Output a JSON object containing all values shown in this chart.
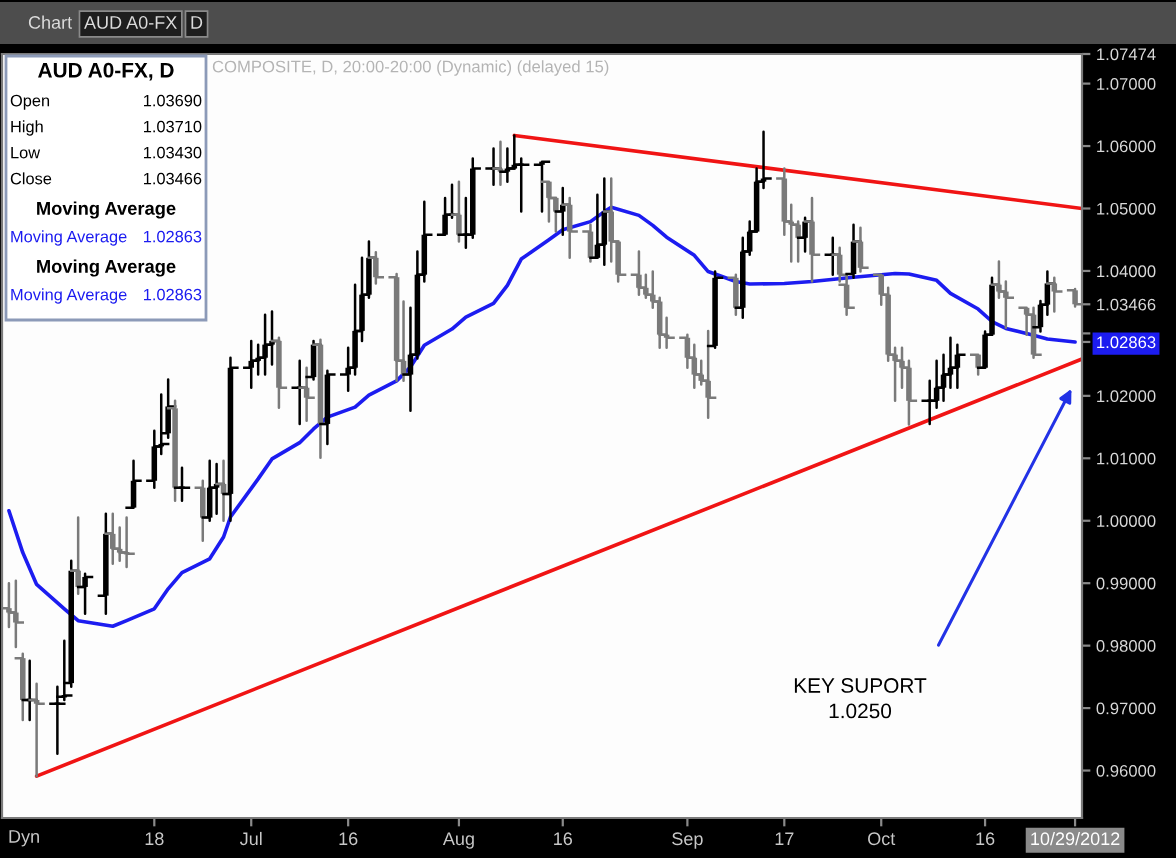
{
  "chart_data": {
    "type": "candlestick",
    "title": "AUD A0-FX, D",
    "subtitle": "COMPOSITE, D, 20:00-20:00 (Dynamic) (delayed 15)",
    "x": [
      "2012-05-28",
      "2012-05-29",
      "2012-05-30",
      "2012-05-31",
      "2012-06-01",
      "2012-06-04",
      "2012-06-05",
      "2012-06-06",
      "2012-06-07",
      "2012-06-08",
      "2012-06-11",
      "2012-06-12",
      "2012-06-13",
      "2012-06-14",
      "2012-06-15",
      "2012-06-18",
      "2012-06-19",
      "2012-06-20",
      "2012-06-21",
      "2012-06-22",
      "2012-06-25",
      "2012-06-26",
      "2012-06-27",
      "2012-06-28",
      "2012-06-29",
      "2012-07-02",
      "2012-07-03",
      "2012-07-04",
      "2012-07-05",
      "2012-07-06",
      "2012-07-09",
      "2012-07-10",
      "2012-07-11",
      "2012-07-12",
      "2012-07-13",
      "2012-07-16",
      "2012-07-17",
      "2012-07-18",
      "2012-07-19",
      "2012-07-20",
      "2012-07-23",
      "2012-07-24",
      "2012-07-25",
      "2012-07-26",
      "2012-07-27",
      "2012-07-30",
      "2012-07-31",
      "2012-08-01",
      "2012-08-02",
      "2012-08-03",
      "2012-08-06",
      "2012-08-07",
      "2012-08-08",
      "2012-08-09",
      "2012-08-10",
      "2012-08-13",
      "2012-08-14",
      "2012-08-15",
      "2012-08-16",
      "2012-08-17",
      "2012-08-20",
      "2012-08-21",
      "2012-08-22",
      "2012-08-23",
      "2012-08-24",
      "2012-08-27",
      "2012-08-28",
      "2012-08-29",
      "2012-08-30",
      "2012-08-31",
      "2012-09-03",
      "2012-09-04",
      "2012-09-05",
      "2012-09-06",
      "2012-09-07",
      "2012-09-10",
      "2012-09-11",
      "2012-09-12",
      "2012-09-13",
      "2012-09-14",
      "2012-09-17",
      "2012-09-18",
      "2012-09-19",
      "2012-09-20",
      "2012-09-21",
      "2012-09-24",
      "2012-09-25",
      "2012-09-26",
      "2012-09-27",
      "2012-09-28",
      "2012-10-01",
      "2012-10-02",
      "2012-10-03",
      "2012-10-04",
      "2012-10-05",
      "2012-10-08",
      "2012-10-09",
      "2012-10-10",
      "2012-10-11",
      "2012-10-12",
      "2012-10-15",
      "2012-10-16",
      "2012-10-17",
      "2012-10-18",
      "2012-10-19",
      "2012-10-22",
      "2012-10-23",
      "2012-10-24",
      "2012-10-25",
      "2012-10-26",
      "2012-10-29"
    ],
    "ohlc": [
      [
        0.986,
        0.99,
        0.983,
        0.9853
      ],
      [
        0.9853,
        0.9904,
        0.9798,
        0.9837
      ],
      [
        0.978,
        0.9787,
        0.9681,
        0.9713
      ],
      [
        0.9713,
        0.9776,
        0.9681,
        0.9713
      ],
      [
        0.9713,
        0.9739,
        0.9591,
        0.9707
      ],
      [
        0.9707,
        0.9734,
        0.9627,
        0.9707
      ],
      [
        0.9718,
        0.9808,
        0.9713,
        0.972
      ],
      [
        0.974,
        0.9936,
        0.9734,
        0.992
      ],
      [
        0.992,
        1.0005,
        0.9883,
        0.9894
      ],
      [
        0.9894,
        0.9915,
        0.9851,
        0.991
      ],
      [
        0.988,
        1.0011,
        0.9851,
        0.9979
      ],
      [
        0.9979,
        1.0011,
        0.9931,
        0.9955
      ],
      [
        0.9955,
        0.9989,
        0.9936,
        0.9949
      ],
      [
        0.9949,
        1.0005,
        0.9926,
        0.9947
      ],
      [
        1.0021,
        1.0096,
        1.0021,
        1.0064
      ],
      [
        1.0064,
        1.0144,
        1.0053,
        1.0119
      ],
      [
        1.0119,
        1.0202,
        1.0107,
        1.0123
      ],
      [
        1.014,
        1.0226,
        1.0133,
        1.0183
      ],
      [
        1.018,
        1.0192,
        1.0032,
        1.0053
      ],
      [
        1.0053,
        1.0085,
        1.0032,
        1.0053
      ],
      [
        1.0053,
        1.0064,
        0.9968,
        1.0005
      ],
      [
        1.0005,
        1.0096,
        1.0,
        1.0053
      ],
      [
        1.0053,
        1.0091,
        1.0011,
        1.0059
      ],
      [
        1.0059,
        1.0096,
        1.0,
        1.0043
      ],
      [
        1.0043,
        1.0261,
        1.0,
        1.0245
      ],
      [
        1.0245,
        1.0288,
        1.0213,
        1.0256
      ],
      [
        1.0256,
        1.0282,
        1.0234,
        1.0261
      ],
      [
        1.0261,
        1.033,
        1.0234,
        1.0282
      ],
      [
        1.0282,
        1.0335,
        1.025,
        1.0288
      ],
      [
        1.0288,
        1.0293,
        1.0181,
        1.0213
      ],
      [
        1.0213,
        1.0256,
        1.0155,
        1.0213
      ],
      [
        1.0213,
        1.0245,
        1.016,
        1.0197
      ],
      [
        1.023,
        1.0288,
        1.0226,
        1.0282
      ],
      [
        1.0282,
        1.029,
        1.0101,
        1.0155
      ],
      [
        1.0155,
        1.024,
        1.0123,
        1.0234
      ],
      [
        1.0234,
        1.0277,
        1.0208,
        1.0245
      ],
      [
        1.0245,
        1.0378,
        1.0234,
        1.0304
      ],
      [
        1.0304,
        1.0421,
        1.0288,
        1.0362
      ],
      [
        1.0362,
        1.0447,
        1.0357,
        1.0421
      ],
      [
        1.0421,
        1.043,
        1.038,
        1.039
      ],
      [
        1.039,
        1.0395,
        1.0224,
        1.0256
      ],
      [
        1.0256,
        1.0351,
        1.0224,
        1.0234
      ],
      [
        1.0234,
        1.0341,
        1.0176,
        1.0266
      ],
      [
        1.0266,
        1.0431,
        1.026,
        1.0394
      ],
      [
        1.0394,
        1.0511,
        1.0383,
        1.0458
      ],
      [
        1.0458,
        1.0517,
        1.0458,
        1.049
      ],
      [
        1.049,
        1.0538,
        1.0485,
        1.049
      ],
      [
        1.049,
        1.0543,
        1.0447,
        1.0458
      ],
      [
        1.0458,
        1.0517,
        1.0437,
        1.0458
      ],
      [
        1.0458,
        1.058,
        1.0453,
        1.0564
      ],
      [
        1.0564,
        1.0596,
        1.0538,
        1.0564
      ],
      [
        1.0564,
        1.0607,
        1.0538,
        1.0559
      ],
      [
        1.0559,
        1.0596,
        1.0543,
        1.0564
      ],
      [
        1.0564,
        1.0617,
        1.0564,
        1.057
      ],
      [
        1.057,
        1.058,
        1.0495,
        1.057
      ],
      [
        1.057,
        1.0575,
        1.0495,
        1.0575
      ],
      [
        1.0543,
        1.0543,
        1.0479,
        1.0517
      ],
      [
        1.0517,
        1.0517,
        1.0463,
        1.0495
      ],
      [
        1.0495,
        1.0533,
        1.0458,
        1.0506
      ],
      [
        1.0506,
        1.0517,
        1.0421,
        1.0463
      ],
      [
        1.0463,
        1.0474,
        1.0415,
        1.0421
      ],
      [
        1.0421,
        1.0522,
        1.0421,
        1.0442
      ],
      [
        1.0442,
        1.0548,
        1.041,
        1.0495
      ],
      [
        1.0495,
        1.0548,
        1.0415,
        1.0447
      ],
      [
        1.0447,
        1.0447,
        1.0383,
        1.0394
      ],
      [
        1.0394,
        1.0431,
        1.0362,
        1.0373
      ],
      [
        1.0373,
        1.0394,
        1.0357,
        1.0362
      ],
      [
        1.0362,
        1.0399,
        1.0341,
        1.0351
      ],
      [
        1.0351,
        1.0357,
        1.0277,
        1.0298
      ],
      [
        1.0298,
        1.0325,
        1.0277,
        1.0293
      ],
      [
        1.0293,
        1.0298,
        1.0245,
        1.0261
      ],
      [
        1.0261,
        1.0282,
        1.0213,
        1.0234
      ],
      [
        1.0234,
        1.0256,
        1.0218,
        1.0224
      ],
      [
        1.0224,
        1.0304,
        1.0165,
        1.0197
      ],
      [
        1.028,
        1.0399,
        1.0277,
        1.0389
      ],
      [
        1.0389,
        1.0394,
        1.033,
        1.0341
      ],
      [
        1.0341,
        1.0453,
        1.0325,
        1.0431
      ],
      [
        1.0431,
        1.0479,
        1.0426,
        1.0463
      ],
      [
        1.0463,
        1.0564,
        1.0463,
        1.0543
      ],
      [
        1.0543,
        1.0623,
        1.0533,
        1.0548
      ],
      [
        1.0548,
        1.0564,
        1.0458,
        1.0479
      ],
      [
        1.0479,
        1.0506,
        1.0415,
        1.0474
      ],
      [
        1.0474,
        1.0479,
        1.0415,
        1.0453
      ],
      [
        1.0453,
        1.0485,
        1.0431,
        1.0479
      ],
      [
        1.0479,
        1.0517,
        1.0383,
        1.0426
      ],
      [
        1.0426,
        1.0453,
        1.0394,
        1.0426
      ],
      [
        1.0426,
        1.0437,
        1.0383,
        1.0394
      ],
      [
        1.0378,
        1.0394,
        1.033,
        1.0341
      ],
      [
        1.0395,
        1.0474,
        1.0389,
        1.0447
      ],
      [
        1.0447,
        1.0469,
        1.0399,
        1.0405
      ],
      [
        1.0394,
        1.0394,
        1.0346,
        1.0362
      ],
      [
        1.0362,
        1.0373,
        1.0256,
        1.0266
      ],
      [
        1.0266,
        1.0277,
        1.0192,
        1.0256
      ],
      [
        1.0256,
        1.0277,
        1.0213,
        1.0245
      ],
      [
        1.0245,
        1.0256,
        1.0154,
        1.0192
      ],
      [
        1.0192,
        1.0224,
        1.0155,
        1.0192
      ],
      [
        1.0192,
        1.0256,
        1.0181,
        1.0213
      ],
      [
        1.0213,
        1.0266,
        1.0192,
        1.0234
      ],
      [
        1.0234,
        1.0293,
        1.0213,
        1.0245
      ],
      [
        1.0245,
        1.0282,
        1.0213,
        1.0266
      ],
      [
        1.0266,
        1.0266,
        1.0234,
        1.0245
      ],
      [
        1.0245,
        1.0303,
        1.0245,
        1.0298
      ],
      [
        1.0298,
        1.0389,
        1.0298,
        1.0378
      ],
      [
        1.0378,
        1.0415,
        1.0357,
        1.0367
      ],
      [
        1.0367,
        1.0383,
        1.0309,
        1.0357
      ],
      [
        1.0341,
        1.0341,
        1.0298,
        1.033
      ],
      [
        1.033,
        1.0341,
        1.0261,
        1.0266
      ],
      [
        1.031,
        1.0352,
        1.0303,
        1.0346
      ],
      [
        1.0346,
        1.0399,
        1.033,
        1.038
      ],
      [
        1.038,
        1.0389,
        1.0335,
        1.0367
      ],
      [
        1.0369,
        1.0371,
        1.0343,
        1.03466
      ]
    ],
    "colors": [
      "#7a7a7a",
      "#7a7a7a",
      "#7a7a7a",
      "#000000",
      "#7a7a7a",
      "#000000",
      "#000000",
      "#000000",
      "#7a7a7a",
      "#000000",
      "#000000",
      "#7a7a7a",
      "#7a7a7a",
      "#7a7a7a",
      "#000000",
      "#000000",
      "#000000",
      "#000000",
      "#7a7a7a",
      "#000000",
      "#7a7a7a",
      "#000000",
      "#000000",
      "#7a7a7a",
      "#000000",
      "#000000",
      "#000000",
      "#000000",
      "#000000",
      "#7a7a7a",
      "#000000",
      "#7a7a7a",
      "#000000",
      "#7a7a7a",
      "#000000",
      "#000000",
      "#000000",
      "#000000",
      "#000000",
      "#7a7a7a",
      "#7a7a7a",
      "#7a7a7a",
      "#000000",
      "#000000",
      "#000000",
      "#000000",
      "#000000",
      "#7a7a7a",
      "#000000",
      "#000000",
      "#000000",
      "#7a7a7a",
      "#000000",
      "#000000",
      "#000000",
      "#000000",
      "#7a7a7a",
      "#7a7a7a",
      "#000000",
      "#7a7a7a",
      "#7a7a7a",
      "#000000",
      "#000000",
      "#7a7a7a",
      "#7a7a7a",
      "#7a7a7a",
      "#7a7a7a",
      "#7a7a7a",
      "#7a7a7a",
      "#7a7a7a",
      "#7a7a7a",
      "#7a7a7a",
      "#7a7a7a",
      "#7a7a7a",
      "#000000",
      "#7a7a7a",
      "#000000",
      "#000000",
      "#000000",
      "#000000",
      "#7a7a7a",
      "#7a7a7a",
      "#7a7a7a",
      "#000000",
      "#7a7a7a",
      "#000000",
      "#7a7a7a",
      "#7a7a7a",
      "#000000",
      "#7a7a7a",
      "#7a7a7a",
      "#7a7a7a",
      "#7a7a7a",
      "#7a7a7a",
      "#7a7a7a",
      "#000000",
      "#000000",
      "#000000",
      "#000000",
      "#000000",
      "#7a7a7a",
      "#000000",
      "#000000",
      "#7a7a7a",
      "#7a7a7a",
      "#7a7a7a",
      "#7a7a7a",
      "#000000",
      "#000000",
      "#7a7a7a",
      "#7a7a7a"
    ],
    "series": [
      {
        "type": "line",
        "color": "#1c1cf0",
        "x": [
          "2012-05-28",
          "2012-05-30",
          "2012-06-01",
          "2012-06-05",
          "2012-06-07",
          "2012-06-12",
          "2012-06-14",
          "2012-06-18",
          "2012-06-20",
          "2012-06-22",
          "2012-06-26",
          "2012-06-28",
          "2012-06-29",
          "2012-07-03",
          "2012-07-05",
          "2012-07-09",
          "2012-07-11",
          "2012-07-13",
          "2012-07-17",
          "2012-07-19",
          "2012-07-23",
          "2012-07-25",
          "2012-07-27",
          "2012-07-31",
          "2012-08-02",
          "2012-08-06",
          "2012-08-08",
          "2012-08-10",
          "2012-08-14",
          "2012-08-16",
          "2012-08-20",
          "2012-08-22",
          "2012-08-23",
          "2012-08-27",
          "2012-08-29",
          "2012-08-31",
          "2012-09-04",
          "2012-09-06",
          "2012-09-10",
          "2012-09-12",
          "2012-09-17",
          "2012-09-21",
          "2012-09-27",
          "2012-10-03",
          "2012-10-05",
          "2012-10-09",
          "2012-10-11",
          "2012-10-15",
          "2012-10-17",
          "2012-10-19",
          "2012-10-23",
          "2012-10-25",
          "2012-10-29"
        ],
        "values": [
          1.0016,
          0.9949,
          0.9898,
          0.9859,
          0.984,
          0.9831,
          0.984,
          0.9859,
          0.9891,
          0.9917,
          0.9939,
          0.9974,
          1.0006,
          1.0067,
          1.0099,
          1.0125,
          1.0147,
          1.0166,
          1.0182,
          1.0201,
          1.0224,
          1.0246,
          1.0281,
          1.0307,
          1.0326,
          1.0348,
          1.0377,
          1.0419,
          1.045,
          1.0466,
          1.0479,
          1.0495,
          1.0502,
          1.0489,
          1.0473,
          1.0454,
          1.0425,
          1.0399,
          1.0383,
          1.0379,
          1.038,
          1.0383,
          1.039,
          1.0396,
          1.0395,
          1.0385,
          1.0364,
          1.0339,
          1.0319,
          1.0308,
          1.0297,
          1.0291,
          1.02863
        ]
      },
      {
        "type": "line",
        "color": "#f01414",
        "x": [
          "2012-08-09",
          "2012-10-30"
        ],
        "values": [
          1.0617,
          1.05
        ]
      },
      {
        "type": "line",
        "color": "#f01414",
        "x": [
          "2012-06-01",
          "2012-10-30"
        ],
        "values": [
          0.9591,
          1.0259
        ]
      }
    ],
    "xlim": [
      "2012-05-27",
      "2012-10-30"
    ],
    "xticks": [
      {
        "value": "2012-06-18",
        "label": "18"
      },
      {
        "value": "2012-07-02",
        "label": "Jul"
      },
      {
        "value": "2012-07-16",
        "label": "16"
      },
      {
        "value": "2012-08-01",
        "label": "Aug"
      },
      {
        "value": "2012-08-16",
        "label": "16"
      },
      {
        "value": "2012-09-03",
        "label": "Sep"
      },
      {
        "value": "2012-09-17",
        "label": "17"
      },
      {
        "value": "2012-10-01",
        "label": "Oct"
      },
      {
        "value": "2012-10-16",
        "label": "16"
      },
      {
        "value": "2012-10-29",
        "label": "10/29/2012"
      }
    ],
    "ylim": [
      0.9524,
      1.07474
    ],
    "yticks": [
      {
        "value": 0.96,
        "label": "0.96000"
      },
      {
        "value": 0.97,
        "label": "0.97000"
      },
      {
        "value": 0.98,
        "label": "0.98000"
      },
      {
        "value": 0.99,
        "label": "0.99000"
      },
      {
        "value": 1.0,
        "label": "1.00000"
      },
      {
        "value": 1.01,
        "label": "1.01000"
      },
      {
        "value": 1.02,
        "label": "1.02000"
      },
      {
        "value": 1.03,
        "label": null
      },
      {
        "value": 1.04,
        "label": "1.04000"
      },
      {
        "value": 1.05,
        "label": "1.05000"
      },
      {
        "value": 1.06,
        "label": "1.06000"
      },
      {
        "value": 1.07,
        "label": "1.07000"
      },
      {
        "value": 1.02863,
        "label": "1.02863"
      },
      {
        "value": 1.03466,
        "label": "1.03466"
      },
      {
        "value": 1.07474,
        "label": "1.07474"
      }
    ],
    "annotations": [
      "KEY SUPORT\n1.0250",
      "Chart",
      "AUD A0-FX",
      "D",
      "Open 1.03690",
      "High 1.03710",
      "Low 1.03430",
      "Close 1.03466",
      "Moving Average",
      "Moving Average 1.02863",
      "Moving Average",
      "Moving Average 1.02863",
      "Dyn"
    ]
  }
}
